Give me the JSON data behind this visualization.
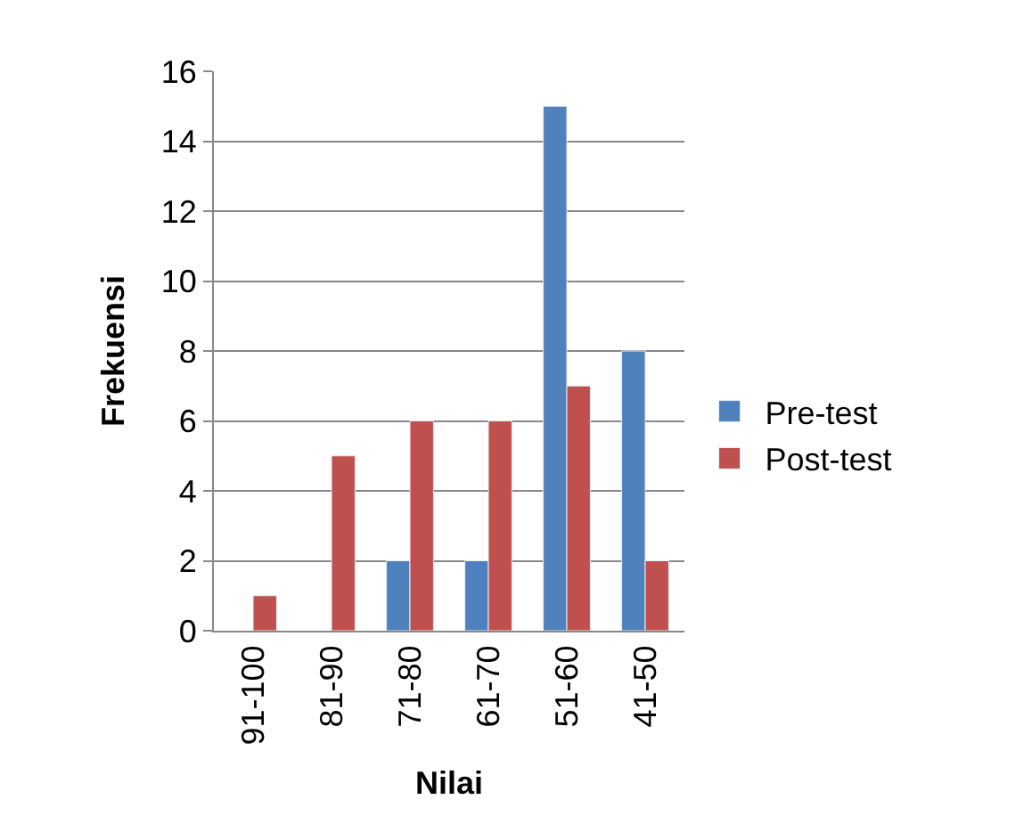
{
  "chart_data": {
    "type": "bar",
    "xlabel": "Nilai",
    "ylabel": "Frekuensi",
    "categories": [
      "91-100",
      "81-90",
      "71-80",
      "61-70",
      "51-60",
      "41-50"
    ],
    "series": [
      {
        "name": "Pre-test",
        "color": "#4f81bd",
        "values": [
          null,
          null,
          2,
          2,
          15,
          8
        ]
      },
      {
        "name": "Post-test",
        "color": "#c0504d",
        "values": [
          1,
          5,
          6,
          6,
          7,
          2
        ]
      }
    ],
    "ylim": [
      0,
      16
    ],
    "yticks": [
      0,
      2,
      4,
      6,
      8,
      10,
      12,
      14,
      16
    ],
    "grid": "y",
    "legend": "right"
  }
}
